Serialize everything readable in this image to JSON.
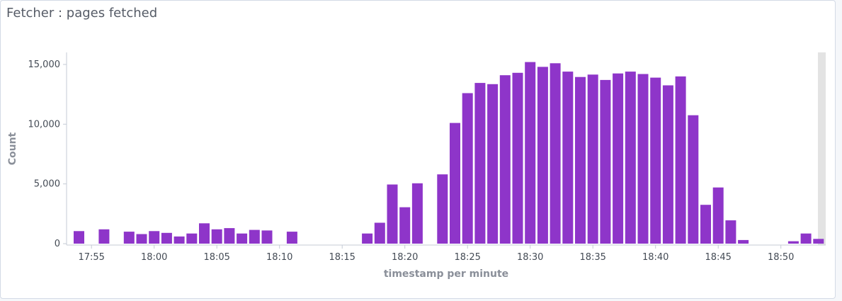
{
  "panel": {
    "title": "Fetcher : pages fetched"
  },
  "colors": {
    "bar": "#8e35c9",
    "axis": "#c5cbd6",
    "grid": "#e6e9ef",
    "overflow_band": "#e3e3e3"
  },
  "chart_data": {
    "type": "bar",
    "title": "Fetcher : pages fetched",
    "xlabel": "timestamp per minute",
    "ylabel": "Count",
    "ylim": [
      0,
      16000
    ],
    "yticks": [
      0,
      5000,
      10000,
      15000
    ],
    "ytick_labels": [
      "0",
      "5,000",
      "10,000",
      "15,000"
    ],
    "xtick_labels": [
      "17:55",
      "18:00",
      "18:05",
      "18:10",
      "18:15",
      "18:20",
      "18:25",
      "18:30",
      "18:35",
      "18:40",
      "18:45",
      "18:50"
    ],
    "grid": false,
    "legend": "none",
    "categories": [
      "17:54",
      "17:55",
      "17:56",
      "17:57",
      "17:58",
      "17:59",
      "18:00",
      "18:01",
      "18:02",
      "18:03",
      "18:04",
      "18:05",
      "18:06",
      "18:07",
      "18:08",
      "18:09",
      "18:10",
      "18:11",
      "18:12",
      "18:13",
      "18:14",
      "18:15",
      "18:16",
      "18:17",
      "18:18",
      "18:19",
      "18:20",
      "18:21",
      "18:22",
      "18:23",
      "18:24",
      "18:25",
      "18:26",
      "18:27",
      "18:28",
      "18:29",
      "18:30",
      "18:31",
      "18:32",
      "18:33",
      "18:34",
      "18:35",
      "18:36",
      "18:37",
      "18:38",
      "18:39",
      "18:40",
      "18:41",
      "18:42",
      "18:43",
      "18:44",
      "18:45",
      "18:46",
      "18:47",
      "18:48",
      "18:49",
      "18:50",
      "18:51",
      "18:52",
      "18:53"
    ],
    "values": [
      1050,
      0,
      1200,
      0,
      1000,
      800,
      1050,
      900,
      600,
      850,
      1700,
      1200,
      1300,
      850,
      1150,
      1100,
      0,
      1000,
      0,
      0,
      0,
      0,
      0,
      850,
      1750,
      4950,
      3050,
      5050,
      0,
      5800,
      10100,
      12600,
      13450,
      13350,
      14100,
      14300,
      15200,
      14800,
      15100,
      14400,
      13950,
      14150,
      13700,
      14250,
      14400,
      14200,
      13900,
      13250,
      14000,
      10750,
      3250,
      4700,
      1950,
      300,
      0,
      0,
      0,
      200,
      850,
      400
    ]
  }
}
